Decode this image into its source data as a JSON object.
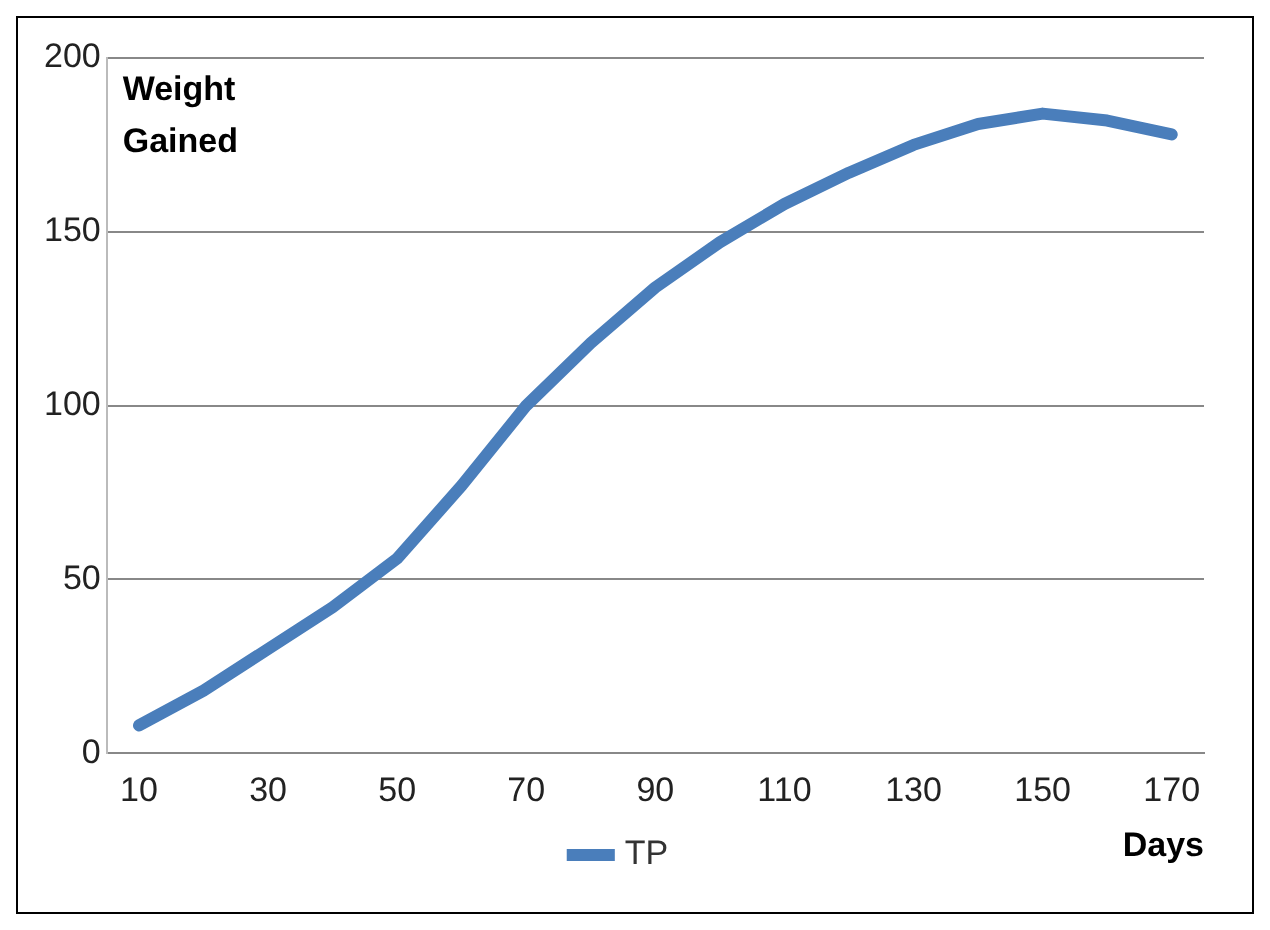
{
  "chart_data": {
    "type": "line",
    "ylabel": "Weight Gained",
    "xlabel": "Days",
    "x": [
      10,
      20,
      30,
      40,
      50,
      60,
      70,
      80,
      90,
      100,
      110,
      120,
      130,
      140,
      150,
      160,
      170
    ],
    "series": [
      {
        "name": "TP",
        "color": "#4a7ebb",
        "values": [
          8,
          18,
          30,
          42,
          56,
          77,
          100,
          118,
          134,
          147,
          158,
          167,
          175,
          181,
          184,
          182,
          178
        ]
      }
    ],
    "xlim": [
      5,
      175
    ],
    "xticks": [
      10,
      30,
      50,
      70,
      90,
      110,
      130,
      150,
      170
    ],
    "ylim": [
      0,
      200
    ],
    "yticks": [
      0,
      50,
      100,
      150,
      200
    ],
    "grid": "y",
    "legend": "bottom",
    "marker": "none",
    "line_style": "solid"
  }
}
